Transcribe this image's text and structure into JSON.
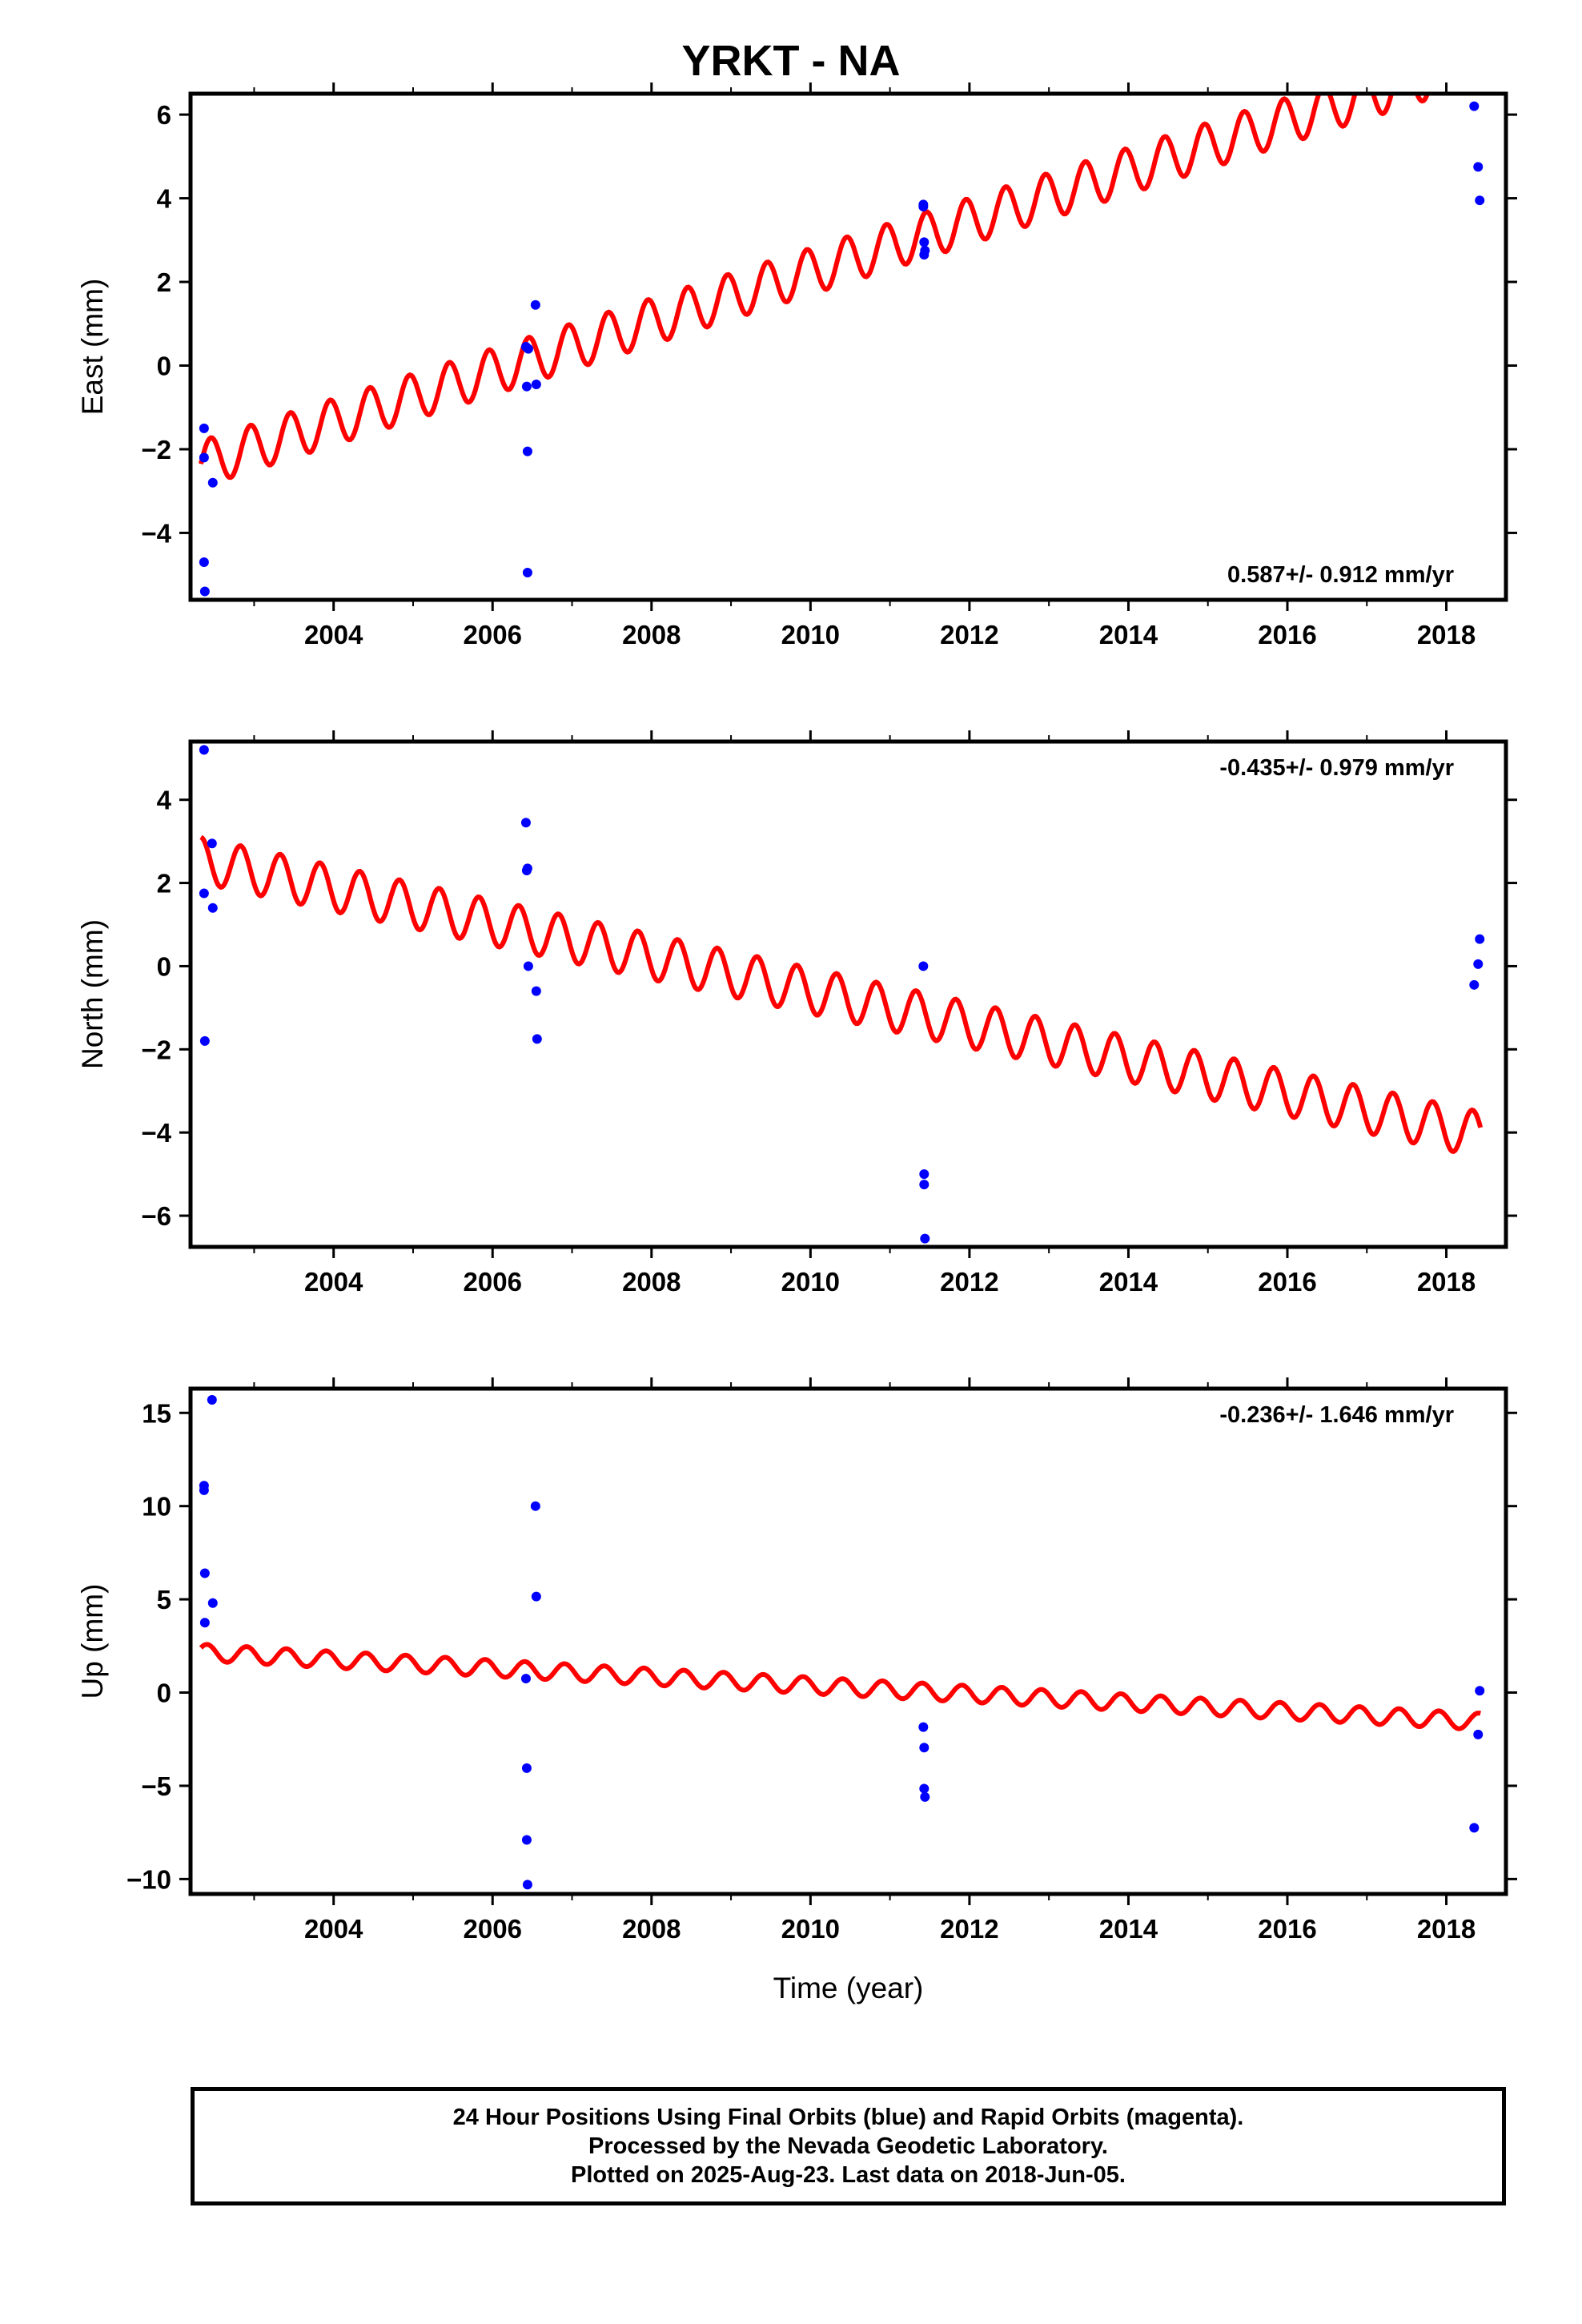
{
  "title": "YRKT - NA",
  "colors": {
    "model": "#ff0000",
    "final_orbits": "#0000ff",
    "rapid_orbits": "#ff00ff",
    "frame": "#000000"
  },
  "chart_data": [
    {
      "type": "scatter",
      "component": "east",
      "ylabel": "East (mm)",
      "xlabel": "",
      "xlim": [
        2002.2,
        2018.75
      ],
      "ylim": [
        -5.6,
        6.5
      ],
      "xticks": [
        2004,
        2006,
        2008,
        2010,
        2012,
        2014,
        2016,
        2018
      ],
      "yticks": [
        -4,
        -2,
        0,
        2,
        4,
        6
      ],
      "ytick_labels": [
        "−4",
        "−2",
        "0",
        "2",
        "4",
        "6"
      ],
      "rate_text": "0.587+/- 0.912 mm/yr",
      "rate_position": "bottom-right",
      "model": {
        "start": 2002.33,
        "end": 2018.43,
        "offset": -2.35,
        "slope": 0.6,
        "amplitude": 0.55,
        "period": 0.5,
        "phase": 0.0
      },
      "series": [
        {
          "type": "scatter",
          "x": [
            2002.37,
            2002.37,
            2002.37,
            2002.38,
            2002.48,
            2006.42,
            2006.43,
            2006.44,
            2006.44,
            2006.45,
            2006.54,
            2006.55,
            2011.42,
            2011.42,
            2011.43,
            2011.43,
            2011.44,
            2018.35,
            2018.4,
            2018.42
          ],
          "y": [
            -1.5,
            -2.2,
            -4.7,
            -5.4,
            -2.8,
            0.45,
            -0.5,
            -2.05,
            -4.95,
            0.4,
            1.45,
            -0.45,
            3.8,
            3.85,
            2.95,
            2.65,
            2.75,
            6.2,
            4.75,
            3.95
          ]
        }
      ]
    },
    {
      "type": "scatter",
      "component": "north",
      "ylabel": "North (mm)",
      "xlabel": "",
      "xlim": [
        2002.2,
        2018.75
      ],
      "ylim": [
        -6.75,
        5.4
      ],
      "xticks": [
        2004,
        2006,
        2008,
        2010,
        2012,
        2014,
        2016,
        2018
      ],
      "yticks": [
        -6,
        -4,
        -2,
        0,
        2,
        4
      ],
      "ytick_labels": [
        "−6",
        "−4",
        "−2",
        "0",
        "2",
        "4"
      ],
      "rate_text": "-0.435+/- 0.979 mm/yr",
      "rate_position": "top-right",
      "model": {
        "start": 2002.33,
        "end": 2018.43,
        "offset": 2.55,
        "slope": -0.41,
        "amplitude": 0.55,
        "period": 0.5,
        "phase": 1.57
      },
      "series": [
        {
          "type": "scatter",
          "x": [
            2002.37,
            2002.37,
            2002.38,
            2002.47,
            2002.48,
            2006.42,
            2006.43,
            2006.44,
            2006.45,
            2006.55,
            2006.56,
            2011.42,
            2011.43,
            2011.43,
            2011.44,
            2018.35,
            2018.4,
            2018.42
          ],
          "y": [
            5.2,
            1.75,
            -1.8,
            2.95,
            1.4,
            3.45,
            2.3,
            2.35,
            0.0,
            -0.6,
            -1.75,
            0.0,
            -5.0,
            -5.25,
            -6.55,
            -0.45,
            0.05,
            0.65
          ]
        }
      ]
    },
    {
      "type": "scatter",
      "component": "up",
      "ylabel": "Up (mm)",
      "xlabel": "Time (year)",
      "xlim": [
        2002.2,
        2018.75
      ],
      "ylim": [
        -10.8,
        16.3
      ],
      "xticks": [
        2004,
        2006,
        2008,
        2010,
        2012,
        2014,
        2016,
        2018
      ],
      "yticks": [
        -10,
        -5,
        0,
        5,
        10,
        15
      ],
      "ytick_labels": [
        "−10",
        "−5",
        "0",
        "5",
        "10",
        "15"
      ],
      "rate_text": "-0.236+/- 1.646 mm/yr",
      "rate_position": "top-right",
      "model": {
        "start": 2002.33,
        "end": 2018.43,
        "offset": 2.15,
        "slope": -0.23,
        "amplitude": 0.45,
        "period": 0.5,
        "phase": 0.6
      },
      "series": [
        {
          "type": "scatter",
          "x": [
            2002.37,
            2002.37,
            2002.38,
            2002.38,
            2002.47,
            2002.48,
            2006.42,
            2006.43,
            2006.43,
            2006.44,
            2006.54,
            2006.55,
            2011.42,
            2011.43,
            2011.43,
            2011.44,
            2018.35,
            2018.4,
            2018.42
          ],
          "y": [
            11.1,
            10.85,
            6.4,
            3.75,
            15.7,
            4.8,
            0.75,
            -4.05,
            -7.9,
            -10.3,
            10.0,
            5.15,
            -1.85,
            -2.95,
            -5.15,
            -5.6,
            -7.25,
            -2.25,
            0.1
          ]
        }
      ]
    }
  ],
  "footer": {
    "line1": "24 Hour Positions Using Final Orbits (blue) and Rapid Orbits (magenta).",
    "line2": "Processed by the Nevada Geodetic Laboratory.",
    "line3": "Plotted on 2025-Aug-23. Last data on 2018-Jun-05."
  }
}
